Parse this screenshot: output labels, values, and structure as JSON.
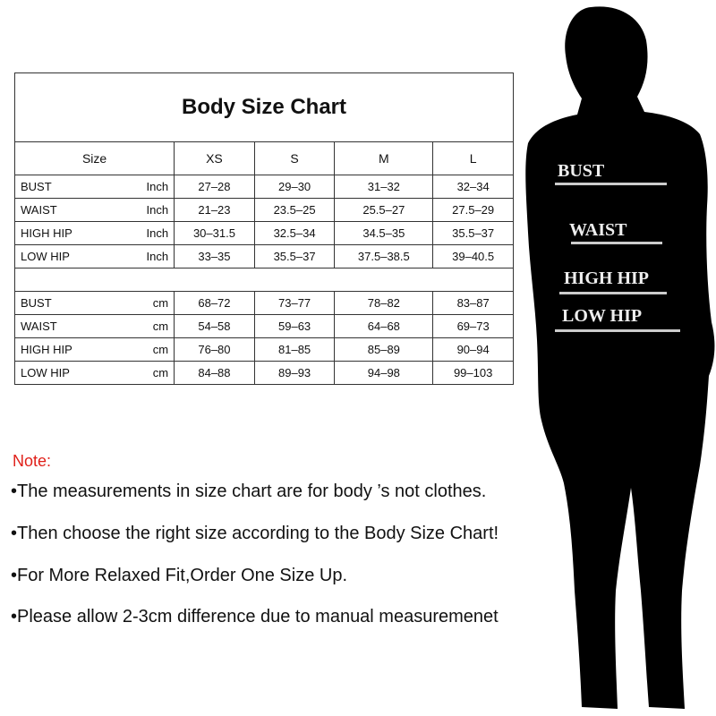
{
  "chart_data": {
    "type": "table",
    "title": "Body Size Chart",
    "columns": [
      "Size",
      "XS",
      "S",
      "M",
      "L"
    ],
    "inch_rows": [
      {
        "measure": "BUST",
        "unit": "Inch",
        "values": [
          "27–28",
          "29–30",
          "31–32",
          "32–34"
        ]
      },
      {
        "measure": "WAIST",
        "unit": "Inch",
        "values": [
          "21–23",
          "23.5–25",
          "25.5–27",
          "27.5–29"
        ]
      },
      {
        "measure": "HIGH HIP",
        "unit": "Inch",
        "values": [
          "30–31.5",
          "32.5–34",
          "34.5–35",
          "35.5–37"
        ]
      },
      {
        "measure": "LOW HIP",
        "unit": "Inch",
        "values": [
          "33–35",
          "35.5–37",
          "37.5–38.5",
          "39–40.5"
        ]
      }
    ],
    "cm_rows": [
      {
        "measure": "BUST",
        "unit": "cm",
        "values": [
          "68–72",
          "73–77",
          "78–82",
          "83–87"
        ]
      },
      {
        "measure": "WAIST",
        "unit": "cm",
        "values": [
          "54–58",
          "59–63",
          "64–68",
          "69–73"
        ]
      },
      {
        "measure": "HIGH HIP",
        "unit": "cm",
        "values": [
          "76–80",
          "81–85",
          "85–89",
          "90–94"
        ]
      },
      {
        "measure": "LOW HIP",
        "unit": "cm",
        "values": [
          "84–88",
          "89–93",
          "94–98",
          "99–103"
        ]
      }
    ]
  },
  "figure_labels": [
    "BUST",
    "WAIST",
    "HIGH HIP",
    "LOW HIP"
  ],
  "note": {
    "heading": "Note:",
    "heading_color": "#e0201a",
    "bullets": [
      "•The measurements in size chart are for body ’s not  clothes.",
      "•Then choose the right  size according to the Body Size Chart!",
      "•For More Relaxed Fit,Order One Size Up.",
      "•Please allow 2-3cm difference due to manual measuremenet"
    ]
  }
}
